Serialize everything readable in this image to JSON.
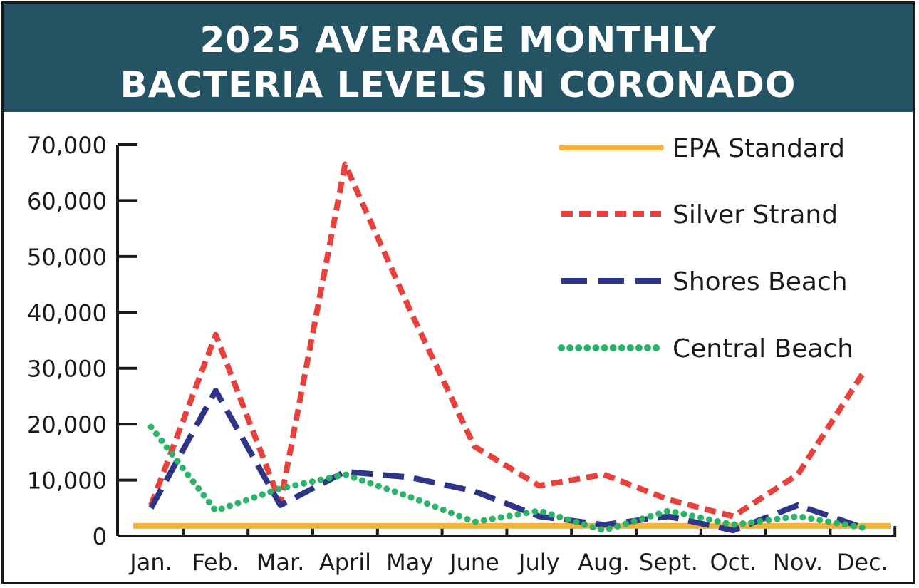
{
  "title": {
    "line1": "2025 AVERAGE MONTHLY",
    "line2": "BACTERIA LEVELS IN CORONADO"
  },
  "chart_data": {
    "type": "line",
    "title": "2025 AVERAGE MONTHLY BACTERIA LEVELS IN CORONADO",
    "xlabel": "",
    "ylabel": "",
    "ylim": [
      0,
      70000
    ],
    "yticks": [
      0,
      10000,
      20000,
      30000,
      40000,
      50000,
      60000,
      70000
    ],
    "ytick_labels": [
      "0",
      "10,000",
      "20,000",
      "30,000",
      "40,000",
      "50,000",
      "60,000",
      "70,000"
    ],
    "categories": [
      "Jan.",
      "Feb.",
      "Mar.",
      "April",
      "May",
      "June",
      "July",
      "Aug.",
      "Sept.",
      "Oct.",
      "Nov.",
      "Dec."
    ],
    "grid": false,
    "legend_position": "top-right",
    "series": [
      {
        "name": "EPA Standard",
        "color": "#f4b13b",
        "style": "solid",
        "values": [
          1800,
          1800,
          1800,
          1800,
          1800,
          1800,
          1800,
          1800,
          1800,
          1800,
          1800,
          1800
        ]
      },
      {
        "name": "Silver Strand",
        "color": "#e8413c",
        "style": "dashed",
        "values": [
          5500,
          36000,
          6000,
          66500,
          40500,
          16000,
          9000,
          11000,
          6500,
          3500,
          11000,
          29000
        ]
      },
      {
        "name": "Shores Beach",
        "color": "#2e3589",
        "style": "long-dashed",
        "values": [
          5000,
          26000,
          5500,
          11500,
          10500,
          8000,
          3500,
          2000,
          3500,
          1000,
          5500,
          1500
        ]
      },
      {
        "name": "Central Beach",
        "color": "#2cb36a",
        "style": "dotted",
        "values": [
          19500,
          4500,
          8500,
          11000,
          7000,
          2500,
          4500,
          1000,
          4500,
          2000,
          3500,
          1500
        ]
      }
    ]
  }
}
